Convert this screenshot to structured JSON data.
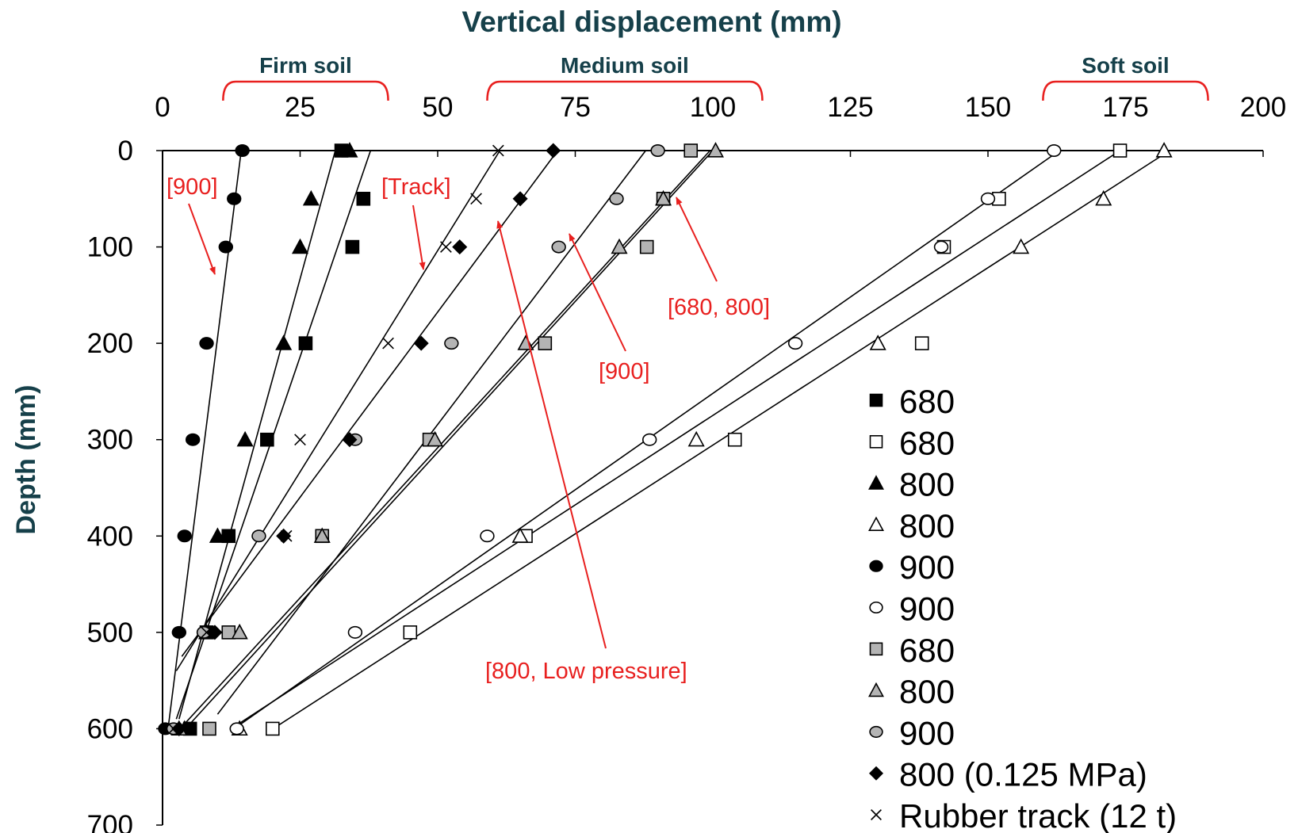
{
  "chart_data": {
    "type": "scatter",
    "title": "",
    "xlabel": "Vertical displacement (mm)",
    "ylabel": "Depth (mm)",
    "xlim": [
      0,
      200
    ],
    "ylim": [
      0,
      700
    ],
    "x_ticks": [
      0,
      25,
      50,
      75,
      100,
      125,
      150,
      175,
      200
    ],
    "y_ticks": [
      0,
      100,
      200,
      300,
      400,
      500,
      600,
      700
    ],
    "x_axis_position": "top",
    "y_axis_inverted": true,
    "grid": false,
    "legend_position": "bottom-right",
    "regions": [
      {
        "label": "Firm soil",
        "x_range": [
          11,
          41
        ]
      },
      {
        "label": "Medium soil",
        "x_range": [
          59,
          109
        ]
      },
      {
        "label": "Soft soil",
        "x_range": [
          160,
          190
        ]
      }
    ],
    "annotations": [
      {
        "label": "[900]"
      },
      {
        "label": "[Track]"
      },
      {
        "label": "[800, Low pressure]"
      },
      {
        "label": "[900]"
      },
      {
        "label": "[680, 800]"
      }
    ],
    "series": [
      {
        "name": "680",
        "marker": "square",
        "fill": "#000000",
        "points": [
          [
            32.5,
            0
          ],
          [
            36.5,
            50
          ],
          [
            34.5,
            100
          ],
          [
            26,
            200
          ],
          [
            19,
            300
          ],
          [
            12,
            400
          ],
          [
            8,
            500
          ],
          [
            5,
            600
          ]
        ]
      },
      {
        "name": "680",
        "marker": "square",
        "fill": "#ffffff",
        "points": [
          [
            174,
            0
          ],
          [
            152,
            50
          ],
          [
            142,
            100
          ],
          [
            138,
            200
          ],
          [
            104,
            300
          ],
          [
            66,
            400
          ],
          [
            45,
            500
          ],
          [
            20,
            600
          ]
        ]
      },
      {
        "name": "800",
        "marker": "triangle",
        "fill": "#000000",
        "points": [
          [
            34,
            0
          ],
          [
            27,
            50
          ],
          [
            25,
            100
          ],
          [
            22,
            200
          ],
          [
            15,
            300
          ],
          [
            10,
            400
          ],
          [
            8,
            500
          ],
          [
            4,
            600
          ]
        ]
      },
      {
        "name": "800",
        "marker": "triangle",
        "fill": "#ffffff",
        "points": [
          [
            182,
            0
          ],
          [
            171,
            50
          ],
          [
            156,
            100
          ],
          [
            130,
            200
          ],
          [
            97,
            300
          ],
          [
            65,
            400
          ],
          [
            14,
            500
          ],
          [
            14,
            600
          ]
        ]
      },
      {
        "name": "900",
        "marker": "circle",
        "fill": "#000000",
        "points": [
          [
            14.5,
            0
          ],
          [
            13,
            50
          ],
          [
            11.5,
            100
          ],
          [
            8,
            200
          ],
          [
            5.5,
            300
          ],
          [
            4,
            400
          ],
          [
            3,
            500
          ],
          [
            0.5,
            600
          ]
        ]
      },
      {
        "name": "900",
        "marker": "circle",
        "fill": "#ffffff",
        "points": [
          [
            162,
            0
          ],
          [
            150,
            50
          ],
          [
            141.5,
            100
          ],
          [
            115,
            200
          ],
          [
            88.5,
            300
          ],
          [
            59,
            400
          ],
          [
            35,
            500
          ],
          [
            13.5,
            600
          ]
        ]
      },
      {
        "name": "680",
        "marker": "square",
        "fill": "#b4b4b4",
        "points": [
          [
            96,
            0
          ],
          [
            91,
            50
          ],
          [
            88,
            100
          ],
          [
            69.5,
            200
          ],
          [
            48.5,
            300
          ],
          [
            29,
            400
          ],
          [
            12,
            500
          ],
          [
            8.5,
            600
          ]
        ]
      },
      {
        "name": "800",
        "marker": "triangle",
        "fill": "#b4b4b4",
        "points": [
          [
            100.5,
            0
          ],
          [
            91,
            50
          ],
          [
            83,
            100
          ],
          [
            66,
            200
          ],
          [
            49.5,
            300
          ],
          [
            29,
            400
          ],
          [
            14,
            500
          ],
          [
            3,
            600
          ]
        ]
      },
      {
        "name": "900",
        "marker": "circle",
        "fill": "#b4b4b4",
        "points": [
          [
            90,
            0
          ],
          [
            82.5,
            50
          ],
          [
            72,
            100
          ],
          [
            52.5,
            200
          ],
          [
            35,
            300
          ],
          [
            17.5,
            400
          ],
          [
            7.5,
            500
          ],
          [
            2,
            600
          ]
        ]
      },
      {
        "name": "800 (0.125 MPa)",
        "marker": "diamond",
        "fill": "#000000",
        "points": [
          [
            71,
            0
          ],
          [
            65,
            50
          ],
          [
            54,
            100
          ],
          [
            47,
            200
          ],
          [
            34,
            300
          ],
          [
            22,
            400
          ],
          [
            9.5,
            500
          ],
          [
            3,
            600
          ]
        ]
      },
      {
        "name": "Rubber track (12 t)",
        "marker": "x",
        "fill": "#000000",
        "points": [
          [
            61,
            0
          ],
          [
            57,
            50
          ],
          [
            51.5,
            100
          ],
          [
            41,
            200
          ],
          [
            25,
            300
          ],
          [
            22.5,
            400
          ],
          [
            8,
            500
          ],
          [
            2,
            600
          ]
        ]
      }
    ],
    "fit_lines": [
      {
        "x": [
          14.3,
          1
        ],
        "y": [
          0,
          600
        ]
      },
      {
        "x": [
          31.4,
          3
        ],
        "y": [
          0,
          590
        ]
      },
      {
        "x": [
          37.8,
          2.5
        ],
        "y": [
          0,
          590
        ]
      },
      {
        "x": [
          61.3,
          2.5
        ],
        "y": [
          0,
          540
        ]
      },
      {
        "x": [
          71.8,
          3.5
        ],
        "y": [
          0,
          525
        ]
      },
      {
        "x": [
          87.8,
          10
        ],
        "y": [
          0,
          585
        ]
      },
      {
        "x": [
          99.5,
          4
        ],
        "y": [
          0,
          595
        ]
      },
      {
        "x": [
          100,
          4.5
        ],
        "y": [
          0,
          598
        ]
      },
      {
        "x": [
          163,
          13
        ],
        "y": [
          0,
          600
        ]
      },
      {
        "x": [
          174,
          13
        ],
        "y": [
          0,
          598
        ]
      },
      {
        "x": [
          183,
          19
        ],
        "y": [
          0,
          604
        ]
      }
    ]
  }
}
